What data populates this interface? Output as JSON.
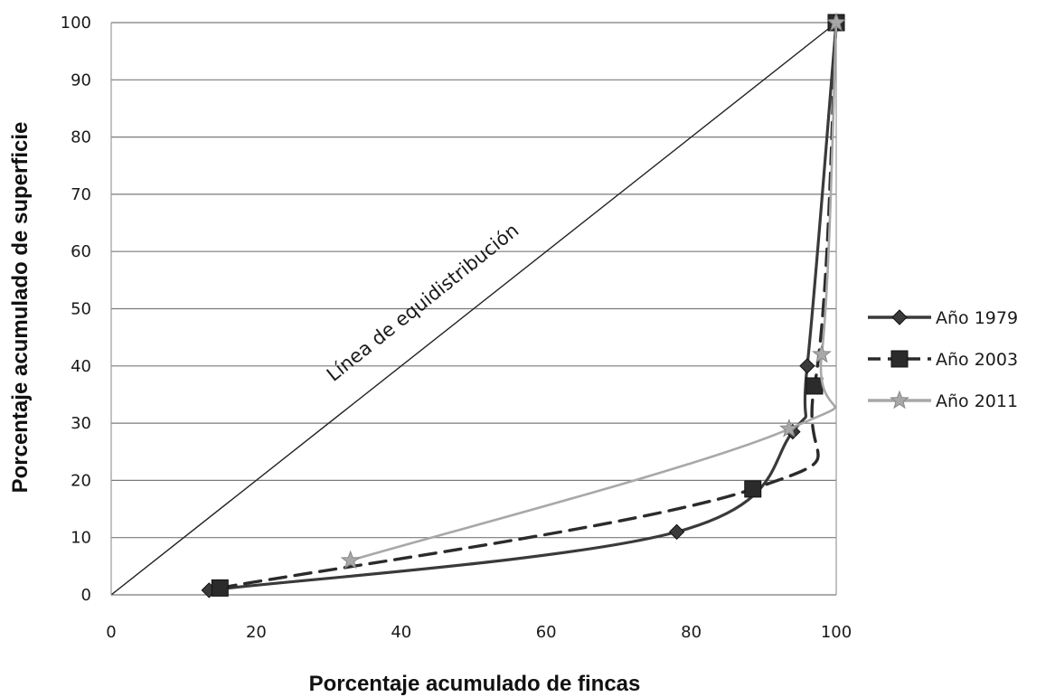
{
  "chart_data": {
    "type": "line",
    "xlabel": "Porcentaje acumulado de fincas",
    "ylabel": "Porcentaje acumulado de superficie",
    "xlim": [
      0,
      100
    ],
    "ylim": [
      0,
      100
    ],
    "x_ticks": [
      "0",
      "20",
      "40",
      "60",
      "80",
      "100"
    ],
    "y_ticks": [
      "0",
      "10",
      "20",
      "30",
      "40",
      "50",
      "60",
      "70",
      "80",
      "90",
      "100"
    ],
    "grid": "horizontal",
    "legend_position": "right",
    "annotation": "Línea de equidistribución",
    "equidistribution_line": {
      "x": [
        0,
        100
      ],
      "y": [
        0,
        100
      ]
    },
    "series": [
      {
        "name": "Año 1979",
        "style": "solid",
        "marker": "diamond",
        "color": "#3a3a3a",
        "x": [
          13.5,
          78,
          94,
          96,
          100
        ],
        "y": [
          0.8,
          11,
          28.5,
          40,
          100
        ]
      },
      {
        "name": "Año 2003",
        "style": "dashed",
        "marker": "square",
        "color": "#2b2b2b",
        "x": [
          15,
          88.5,
          97,
          100
        ],
        "y": [
          1.2,
          18.5,
          36.5,
          100
        ]
      },
      {
        "name": "Año 2011",
        "style": "solid",
        "marker": "star",
        "color": "#a8a8a8",
        "x": [
          33,
          93.5,
          98,
          100
        ],
        "y": [
          6,
          29,
          42,
          100
        ]
      }
    ]
  }
}
